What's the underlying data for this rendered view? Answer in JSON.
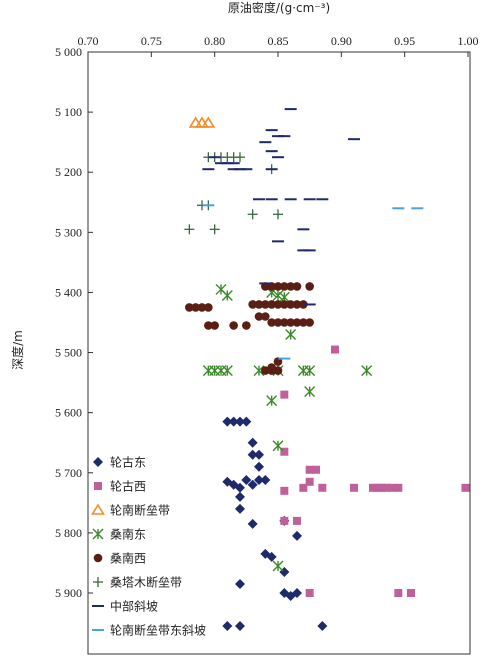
{
  "chart_data": {
    "type": "scatter",
    "xlabel": "原油密度/(g·cm⁻³)",
    "ylabel": "深度/m",
    "xlim": [
      0.7,
      1.0
    ],
    "ylim": [
      5000,
      5990
    ],
    "y_inverted": true,
    "x_axis_position": "top",
    "x_ticks": [
      "0.70",
      "0.75",
      "0.80",
      "0.85",
      "0.90",
      "0.95",
      "1.00"
    ],
    "y_ticks": [
      "5 000",
      "5 100",
      "5 200",
      "5 300",
      "5 400",
      "5 500",
      "5 600",
      "5 700",
      "5 800",
      "5 900"
    ],
    "grid": false,
    "legend_position": "bottom-left",
    "series": [
      {
        "name": "轮古东",
        "marker": "diamond",
        "color": "#1f2a6b",
        "points": [
          [
            0.81,
            5615
          ],
          [
            0.815,
            5615
          ],
          [
            0.82,
            5615
          ],
          [
            0.825,
            5615
          ],
          [
            0.83,
            5650
          ],
          [
            0.83,
            5670
          ],
          [
            0.835,
            5690
          ],
          [
            0.835,
            5670
          ],
          [
            0.81,
            5715
          ],
          [
            0.815,
            5720
          ],
          [
            0.82,
            5725
          ],
          [
            0.825,
            5712
          ],
          [
            0.83,
            5720
          ],
          [
            0.835,
            5712
          ],
          [
            0.84,
            5712
          ],
          [
            0.82,
            5740
          ],
          [
            0.82,
            5760
          ],
          [
            0.83,
            5785
          ],
          [
            0.855,
            5780
          ],
          [
            0.865,
            5805
          ],
          [
            0.84,
            5835
          ],
          [
            0.845,
            5840
          ],
          [
            0.855,
            5865
          ],
          [
            0.82,
            5885
          ],
          [
            0.855,
            5900
          ],
          [
            0.86,
            5905
          ],
          [
            0.865,
            5900
          ],
          [
            0.81,
            5955
          ],
          [
            0.82,
            5955
          ],
          [
            0.885,
            5955
          ]
        ]
      },
      {
        "name": "轮古西",
        "marker": "square",
        "color": "#c0609a",
        "points": [
          [
            0.895,
            5495
          ],
          [
            0.855,
            5570
          ],
          [
            0.855,
            5665
          ],
          [
            0.875,
            5695
          ],
          [
            0.88,
            5695
          ],
          [
            0.855,
            5730
          ],
          [
            0.87,
            5725
          ],
          [
            0.875,
            5715
          ],
          [
            0.885,
            5725
          ],
          [
            0.91,
            5725
          ],
          [
            0.925,
            5725
          ],
          [
            0.928,
            5725
          ],
          [
            0.932,
            5725
          ],
          [
            0.935,
            5725
          ],
          [
            0.94,
            5725
          ],
          [
            0.945,
            5725
          ],
          [
            0.998,
            5725
          ],
          [
            0.855,
            5780
          ],
          [
            0.865,
            5780
          ],
          [
            0.875,
            5900
          ],
          [
            0.945,
            5900
          ],
          [
            0.955,
            5900
          ]
        ]
      },
      {
        "name": "轮南断垒带",
        "marker": "triangle",
        "color": "#f28c28",
        "points": [
          [
            0.785,
            5118
          ],
          [
            0.79,
            5118
          ],
          [
            0.795,
            5118
          ]
        ]
      },
      {
        "name": "桑南东",
        "marker": "asterisk",
        "color": "#3a8a2a",
        "points": [
          [
            0.805,
            5395
          ],
          [
            0.81,
            5405
          ],
          [
            0.845,
            5400
          ],
          [
            0.85,
            5405
          ],
          [
            0.855,
            5408
          ],
          [
            0.86,
            5470
          ],
          [
            0.795,
            5530
          ],
          [
            0.8,
            5530
          ],
          [
            0.805,
            5530
          ],
          [
            0.81,
            5530
          ],
          [
            0.835,
            5530
          ],
          [
            0.85,
            5530
          ],
          [
            0.87,
            5530
          ],
          [
            0.875,
            5530
          ],
          [
            0.92,
            5530
          ],
          [
            0.845,
            5580
          ],
          [
            0.875,
            5565
          ],
          [
            0.85,
            5655
          ],
          [
            0.85,
            5855
          ]
        ]
      },
      {
        "name": "桑南西",
        "marker": "circle",
        "color": "#5a1e14",
        "points": [
          [
            0.78,
            5425
          ],
          [
            0.785,
            5425
          ],
          [
            0.79,
            5425
          ],
          [
            0.795,
            5425
          ],
          [
            0.795,
            5455
          ],
          [
            0.8,
            5455
          ],
          [
            0.815,
            5455
          ],
          [
            0.825,
            5455
          ],
          [
            0.83,
            5420
          ],
          [
            0.835,
            5440
          ],
          [
            0.84,
            5390
          ],
          [
            0.845,
            5390
          ],
          [
            0.85,
            5390
          ],
          [
            0.855,
            5390
          ],
          [
            0.86,
            5390
          ],
          [
            0.865,
            5390
          ],
          [
            0.875,
            5390
          ],
          [
            0.835,
            5420
          ],
          [
            0.84,
            5420
          ],
          [
            0.845,
            5420
          ],
          [
            0.85,
            5420
          ],
          [
            0.855,
            5420
          ],
          [
            0.86,
            5420
          ],
          [
            0.865,
            5420
          ],
          [
            0.87,
            5420
          ],
          [
            0.84,
            5440
          ],
          [
            0.845,
            5450
          ],
          [
            0.85,
            5450
          ],
          [
            0.855,
            5450
          ],
          [
            0.86,
            5450
          ],
          [
            0.865,
            5450
          ],
          [
            0.87,
            5450
          ],
          [
            0.875,
            5450
          ],
          [
            0.85,
            5515
          ],
          [
            0.845,
            5525
          ],
          [
            0.84,
            5530
          ],
          [
            0.845,
            5530
          ],
          [
            0.85,
            5530
          ]
        ]
      },
      {
        "name": "桑塔木断垒带",
        "marker": "plus",
        "color": "#3a6a3a",
        "points": [
          [
            0.795,
            5175
          ],
          [
            0.8,
            5175
          ],
          [
            0.805,
            5175
          ],
          [
            0.81,
            5175
          ],
          [
            0.815,
            5175
          ],
          [
            0.82,
            5175
          ],
          [
            0.79,
            5255
          ],
          [
            0.795,
            5255
          ],
          [
            0.83,
            5270
          ],
          [
            0.85,
            5270
          ],
          [
            0.78,
            5295
          ],
          [
            0.8,
            5295
          ],
          [
            0.845,
            5195
          ]
        ]
      },
      {
        "name": "中部斜坡",
        "marker": "dash",
        "color": "#1f2a6b",
        "points": [
          [
            0.86,
            5095
          ],
          [
            0.845,
            5130
          ],
          [
            0.85,
            5140
          ],
          [
            0.855,
            5140
          ],
          [
            0.91,
            5145
          ],
          [
            0.84,
            5150
          ],
          [
            0.845,
            5165
          ],
          [
            0.85,
            5175
          ],
          [
            0.8,
            5175
          ],
          [
            0.805,
            5185
          ],
          [
            0.81,
            5185
          ],
          [
            0.815,
            5185
          ],
          [
            0.795,
            5195
          ],
          [
            0.815,
            5195
          ],
          [
            0.82,
            5195
          ],
          [
            0.825,
            5195
          ],
          [
            0.845,
            5195
          ],
          [
            0.835,
            5245
          ],
          [
            0.845,
            5245
          ],
          [
            0.86,
            5245
          ],
          [
            0.875,
            5245
          ],
          [
            0.885,
            5245
          ],
          [
            0.87,
            5295
          ],
          [
            0.85,
            5315
          ],
          [
            0.87,
            5330
          ],
          [
            0.875,
            5330
          ],
          [
            0.84,
            5385
          ],
          [
            0.875,
            5420
          ]
        ]
      },
      {
        "name": "轮南断垒带东斜坡",
        "marker": "dash",
        "color": "#4aa0e0",
        "points": [
          [
            0.795,
            5255
          ],
          [
            0.945,
            5260
          ],
          [
            0.96,
            5260
          ],
          [
            0.855,
            5510
          ]
        ]
      }
    ]
  }
}
